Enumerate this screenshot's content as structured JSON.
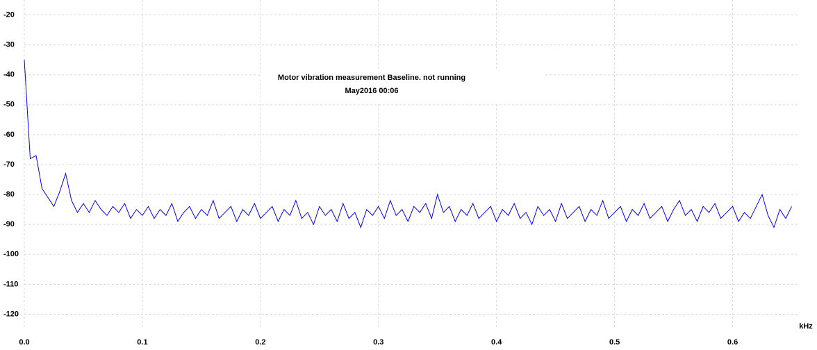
{
  "chart_data": {
    "type": "line",
    "title": "Motor vibration measurement Baseline.   not running",
    "subtitle": "May2016  00:06",
    "x_label": "kHz",
    "color": "#0000ff",
    "grid": true,
    "xlim": [
      0,
      0.655
    ],
    "ylim": [
      -125,
      -15
    ],
    "xticks": [
      {
        "value": 0,
        "label": "0.0"
      },
      0.1,
      0.2,
      0.3,
      0.4,
      0.5,
      0.6
    ],
    "yticks": [
      -20,
      -30,
      -40,
      -50,
      -60,
      -70,
      -80,
      -90,
      -100,
      -110,
      -120
    ],
    "x": [
      0,
      0.005,
      0.01,
      0.015,
      0.02,
      0.025,
      0.03,
      0.035,
      0.04,
      0.045,
      0.05,
      0.055,
      0.06,
      0.065,
      0.07,
      0.075,
      0.08,
      0.085,
      0.09,
      0.095,
      0.1,
      0.105,
      0.11,
      0.115,
      0.12,
      0.125,
      0.13,
      0.135,
      0.14,
      0.145,
      0.15,
      0.155,
      0.16,
      0.165,
      0.17,
      0.175,
      0.18,
      0.185,
      0.19,
      0.195,
      0.2,
      0.205,
      0.21,
      0.215,
      0.22,
      0.225,
      0.23,
      0.235,
      0.24,
      0.245,
      0.25,
      0.255,
      0.26,
      0.265,
      0.27,
      0.275,
      0.28,
      0.285,
      0.29,
      0.295,
      0.3,
      0.305,
      0.31,
      0.315,
      0.32,
      0.325,
      0.33,
      0.335,
      0.34,
      0.345,
      0.35,
      0.355,
      0.36,
      0.365,
      0.37,
      0.375,
      0.38,
      0.385,
      0.39,
      0.395,
      0.4,
      0.405,
      0.41,
      0.415,
      0.42,
      0.425,
      0.43,
      0.435,
      0.44,
      0.445,
      0.45,
      0.455,
      0.46,
      0.465,
      0.47,
      0.475,
      0.48,
      0.485,
      0.49,
      0.495,
      0.5,
      0.505,
      0.51,
      0.515,
      0.52,
      0.525,
      0.53,
      0.535,
      0.54,
      0.545,
      0.55,
      0.555,
      0.56,
      0.565,
      0.57,
      0.575,
      0.58,
      0.585,
      0.59,
      0.595,
      0.6,
      0.605,
      0.61,
      0.615,
      0.62,
      0.625,
      0.63,
      0.635,
      0.64,
      0.645,
      0.65
    ],
    "values": [
      -35,
      -68,
      -67,
      -78,
      -81,
      -84,
      -79,
      -73,
      -82,
      -86,
      -83,
      -86,
      -82,
      -85,
      -87,
      -84,
      -86,
      -83,
      -88,
      -85,
      -87,
      -84,
      -88,
      -85,
      -87,
      -83,
      -89,
      -86,
      -84,
      -88,
      -85,
      -87,
      -82,
      -88,
      -86,
      -84,
      -89,
      -85,
      -87,
      -83,
      -88,
      -86,
      -84,
      -89,
      -85,
      -87,
      -82,
      -88,
      -86,
      -90,
      -84,
      -87,
      -85,
      -89,
      -83,
      -88,
      -86,
      -91,
      -85,
      -87,
      -84,
      -88,
      -82,
      -87,
      -85,
      -89,
      -84,
      -86,
      -83,
      -88,
      -80,
      -86,
      -84,
      -89,
      -85,
      -87,
      -83,
      -88,
      -86,
      -84,
      -89,
      -85,
      -87,
      -83,
      -88,
      -86,
      -90,
      -84,
      -87,
      -85,
      -89,
      -83,
      -88,
      -86,
      -84,
      -89,
      -85,
      -87,
      -82,
      -88,
      -86,
      -84,
      -89,
      -85,
      -87,
      -83,
      -88,
      -86,
      -84,
      -89,
      -85,
      -82,
      -87,
      -85,
      -89,
      -84,
      -86,
      -83,
      -88,
      -86,
      -84,
      -89,
      -86,
      -88,
      -84,
      -80,
      -87,
      -91,
      -85,
      -88,
      -84
    ]
  }
}
